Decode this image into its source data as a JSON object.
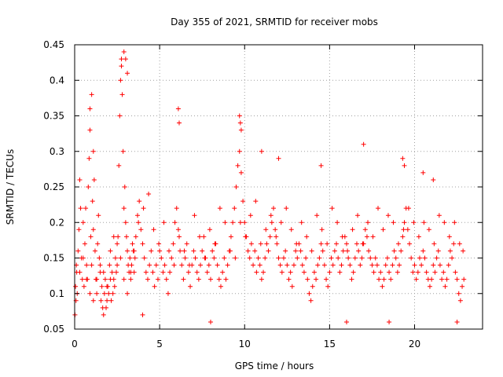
{
  "chart_data": {
    "type": "scatter",
    "title": "Day 355 of 2021, SRMTID for receiver mobs",
    "xlabel": "GPS time / hours",
    "ylabel": "SRMTID / TECUs",
    "xlim": [
      0,
      24
    ],
    "ylim": [
      0.05,
      0.45
    ],
    "xticks": [
      0,
      5,
      10,
      15,
      20
    ],
    "xtick_labels": [
      "0",
      "5",
      "10",
      "15",
      "20"
    ],
    "yticks": [
      0.05,
      0.1,
      0.15,
      0.2,
      0.25,
      0.3,
      0.35,
      0.4,
      0.45
    ],
    "ytick_labels": [
      "0.05",
      "0.1",
      "0.15",
      "0.2",
      "0.25",
      "0.3",
      "0.35",
      "0.4",
      "0.45"
    ],
    "grid": true,
    "marker": "+",
    "color": "#ff0000",
    "series": [
      {
        "name": "SRMTID",
        "x": [
          0.02,
          0.05,
          0.08,
          0.12,
          0.15,
          0.2,
          0.25,
          0.3,
          0.35,
          0.4,
          0.45,
          0.5,
          0.55,
          0.6,
          0.65,
          0.7,
          0.75,
          0.8,
          0.85,
          0.9,
          0.95,
          1.0,
          1.05,
          1.1,
          1.15,
          1.2,
          1.25,
          1.3,
          1.35,
          1.4,
          1.45,
          1.5,
          1.55,
          1.6,
          1.65,
          1.7,
          1.75,
          1.8,
          1.85,
          1.9,
          1.95,
          2.0,
          2.05,
          2.1,
          2.15,
          2.2,
          2.25,
          2.3,
          2.35,
          2.4,
          2.45,
          2.5,
          2.55,
          2.6,
          2.65,
          2.7,
          2.75,
          2.8,
          2.85,
          2.9,
          2.95,
          3.0,
          3.05,
          3.1,
          3.15,
          3.2,
          3.25,
          3.3,
          3.35,
          3.4,
          3.45,
          3.5,
          3.55,
          3.6,
          3.7,
          3.8,
          3.9,
          4.0,
          4.1,
          4.2,
          4.3,
          4.4,
          4.5,
          4.6,
          4.7,
          4.8,
          4.9,
          5.0,
          5.1,
          5.2,
          5.3,
          5.4,
          5.5,
          5.6,
          5.7,
          5.8,
          5.9,
          6.0,
          6.1,
          6.2,
          6.3,
          6.4,
          6.5,
          6.6,
          6.7,
          6.8,
          6.9,
          7.0,
          7.1,
          7.2,
          7.3,
          7.4,
          7.5,
          7.6,
          7.7,
          7.8,
          7.9,
          8.0,
          8.1,
          8.2,
          8.3,
          8.4,
          8.5,
          8.6,
          8.7,
          8.8,
          8.9,
          9.0,
          9.1,
          9.2,
          9.3,
          9.4,
          9.5,
          9.6,
          9.7,
          9.8,
          9.9,
          10.0,
          10.1,
          10.2,
          10.3,
          10.4,
          10.5,
          10.6,
          10.7,
          10.8,
          10.9,
          11.0,
          11.1,
          11.2,
          11.3,
          11.4,
          11.5,
          11.6,
          11.7,
          11.8,
          11.9,
          12.0,
          12.1,
          12.2,
          12.3,
          12.4,
          12.5,
          12.6,
          12.7,
          12.8,
          12.9,
          13.0,
          13.1,
          13.2,
          13.3,
          13.4,
          13.5,
          13.6,
          13.7,
          13.8,
          13.9,
          14.0,
          14.1,
          14.2,
          14.3,
          14.4,
          14.5,
          14.6,
          14.7,
          14.8,
          14.9,
          15.0,
          15.1,
          15.2,
          15.3,
          15.4,
          15.5,
          15.6,
          15.7,
          15.8,
          15.9,
          16.0,
          16.1,
          16.2,
          16.3,
          16.4,
          16.5,
          16.6,
          16.7,
          16.8,
          16.9,
          17.0,
          17.1,
          17.2,
          17.3,
          17.4,
          17.5,
          17.6,
          17.7,
          17.8,
          17.9,
          18.0,
          18.1,
          18.2,
          18.3,
          18.4,
          18.5,
          18.6,
          18.7,
          18.8,
          18.9,
          19.0,
          19.1,
          19.2,
          19.3,
          19.4,
          19.5,
          19.6,
          19.7,
          19.8,
          19.9,
          20.0,
          20.1,
          20.2,
          20.3,
          20.4,
          20.5,
          20.6,
          20.7,
          20.8,
          20.9,
          21.0,
          21.1,
          21.2,
          21.3,
          21.4,
          21.5,
          21.6,
          21.7,
          21.8,
          21.9,
          22.0,
          22.1,
          22.2,
          22.3,
          22.4,
          22.5,
          22.6,
          22.7,
          22.8,
          22.9,
          0.1,
          0.3,
          0.5,
          0.7,
          0.9,
          1.1,
          1.3,
          1.5,
          1.7,
          1.9,
          2.1,
          2.3,
          2.5,
          2.7,
          2.9,
          3.1,
          3.3,
          3.5,
          3.75,
          4.05,
          4.35,
          4.65,
          4.95,
          5.25,
          5.55,
          5.85,
          6.15,
          6.45,
          6.75,
          7.05,
          7.35,
          7.65,
          7.95,
          8.25,
          8.55,
          8.85,
          9.15,
          9.45,
          9.75,
          10.05,
          10.35,
          10.65,
          10.95,
          11.25,
          11.55,
          11.85,
          12.15,
          12.45,
          12.75,
          13.05,
          13.35,
          13.65,
          13.95,
          14.25,
          14.55,
          14.85,
          15.15,
          15.45,
          15.75,
          16.05,
          16.35,
          16.65,
          16.95,
          17.25,
          17.55,
          17.85,
          18.15,
          18.45,
          18.75,
          19.05,
          19.35,
          19.65,
          19.95,
          20.25,
          20.55,
          20.85,
          21.15,
          21.45,
          21.75,
          22.05,
          22.35,
          22.65,
          22.85,
          0.9,
          1.0,
          1.1,
          2.9,
          3.0,
          3.1,
          2.75,
          6.1,
          6.15,
          9.7,
          9.75,
          9.8,
          11.0,
          12.0,
          14.5,
          17.0,
          19.3,
          19.4,
          20.5,
          21.1,
          4.0,
          8.0,
          16.0,
          18.5,
          22.5
        ],
        "y": [
          0.07,
          0.11,
          0.09,
          0.13,
          0.1,
          0.16,
          0.19,
          0.26,
          0.22,
          0.15,
          0.12,
          0.2,
          0.11,
          0.17,
          0.22,
          0.14,
          0.12,
          0.25,
          0.29,
          0.33,
          0.18,
          0.14,
          0.23,
          0.19,
          0.26,
          0.16,
          0.12,
          0.1,
          0.17,
          0.21,
          0.15,
          0.13,
          0.09,
          0.11,
          0.08,
          0.07,
          0.1,
          0.12,
          0.08,
          0.09,
          0.11,
          0.1,
          0.14,
          0.12,
          0.09,
          0.13,
          0.1,
          0.12,
          0.11,
          0.15,
          0.13,
          0.14,
          0.18,
          0.28,
          0.35,
          0.4,
          0.43,
          0.38,
          0.3,
          0.22,
          0.25,
          0.2,
          0.18,
          0.16,
          0.14,
          0.13,
          0.15,
          0.12,
          0.14,
          0.17,
          0.16,
          0.13,
          0.15,
          0.18,
          0.21,
          0.23,
          0.19,
          0.17,
          0.15,
          0.13,
          0.12,
          0.14,
          0.16,
          0.13,
          0.11,
          0.14,
          0.12,
          0.16,
          0.15,
          0.13,
          0.14,
          0.12,
          0.1,
          0.13,
          0.15,
          0.17,
          0.2,
          0.22,
          0.19,
          0.16,
          0.14,
          0.12,
          0.15,
          0.17,
          0.13,
          0.11,
          0.14,
          0.16,
          0.15,
          0.13,
          0.12,
          0.14,
          0.16,
          0.18,
          0.15,
          0.13,
          0.14,
          0.12,
          0.16,
          0.15,
          0.17,
          0.14,
          0.12,
          0.11,
          0.13,
          0.15,
          0.12,
          0.14,
          0.16,
          0.18,
          0.2,
          0.22,
          0.25,
          0.28,
          0.3,
          0.27,
          0.23,
          0.2,
          0.18,
          0.16,
          0.15,
          0.17,
          0.14,
          0.16,
          0.13,
          0.15,
          0.14,
          0.12,
          0.13,
          0.15,
          0.17,
          0.16,
          0.18,
          0.2,
          0.22,
          0.19,
          0.17,
          0.15,
          0.14,
          0.13,
          0.15,
          0.16,
          0.14,
          0.12,
          0.13,
          0.11,
          0.14,
          0.16,
          0.15,
          0.17,
          0.16,
          0.14,
          0.13,
          0.15,
          0.12,
          0.1,
          0.09,
          0.11,
          0.13,
          0.12,
          0.14,
          0.15,
          0.17,
          0.16,
          0.14,
          0.12,
          0.11,
          0.13,
          0.15,
          0.14,
          0.16,
          0.17,
          0.15,
          0.13,
          0.14,
          0.16,
          0.18,
          0.17,
          0.15,
          0.14,
          0.12,
          0.13,
          0.15,
          0.17,
          0.16,
          0.14,
          0.15,
          0.17,
          0.19,
          0.18,
          0.16,
          0.15,
          0.14,
          0.13,
          0.15,
          0.14,
          0.12,
          0.13,
          0.11,
          0.12,
          0.14,
          0.15,
          0.13,
          0.12,
          0.14,
          0.16,
          0.15,
          0.13,
          0.14,
          0.16,
          0.18,
          0.2,
          0.22,
          0.19,
          0.17,
          0.15,
          0.13,
          0.14,
          0.12,
          0.13,
          0.15,
          0.14,
          0.16,
          0.15,
          0.13,
          0.12,
          0.11,
          0.12,
          0.14,
          0.13,
          0.15,
          0.16,
          0.14,
          0.12,
          0.13,
          0.11,
          0.12,
          0.14,
          0.16,
          0.15,
          0.17,
          0.13,
          0.12,
          0.1,
          0.09,
          0.11,
          0.12,
          0.14,
          0.13,
          0.15,
          0.12,
          0.1,
          0.09,
          0.12,
          0.14,
          0.13,
          0.11,
          0.16,
          0.18,
          0.17,
          0.15,
          0.12,
          0.1,
          0.13,
          0.16,
          0.2,
          0.22,
          0.24,
          0.19,
          0.17,
          0.2,
          0.16,
          0.14,
          0.18,
          0.16,
          0.14,
          0.21,
          0.18,
          0.15,
          0.19,
          0.17,
          0.22,
          0.2,
          0.16,
          0.15,
          0.2,
          0.18,
          0.21,
          0.23,
          0.17,
          0.19,
          0.21,
          0.18,
          0.2,
          0.22,
          0.19,
          0.17,
          0.2,
          0.18,
          0.16,
          0.21,
          0.19,
          0.17,
          0.22,
          0.2,
          0.18,
          0.16,
          0.19,
          0.21,
          0.17,
          0.2,
          0.18,
          0.22,
          0.19,
          0.21,
          0.2,
          0.17,
          0.19,
          0.22,
          0.2,
          0.18,
          0.2,
          0.19,
          0.17,
          0.21,
          0.2,
          0.18,
          0.2,
          0.17,
          0.16,
          0.36,
          0.38,
          0.3,
          0.44,
          0.43,
          0.41,
          0.42,
          0.36,
          0.34,
          0.35,
          0.34,
          0.33,
          0.3,
          0.29,
          0.28,
          0.31,
          0.29,
          0.28,
          0.27,
          0.26,
          0.07,
          0.06,
          0.06,
          0.06,
          0.06
        ]
      }
    ]
  }
}
